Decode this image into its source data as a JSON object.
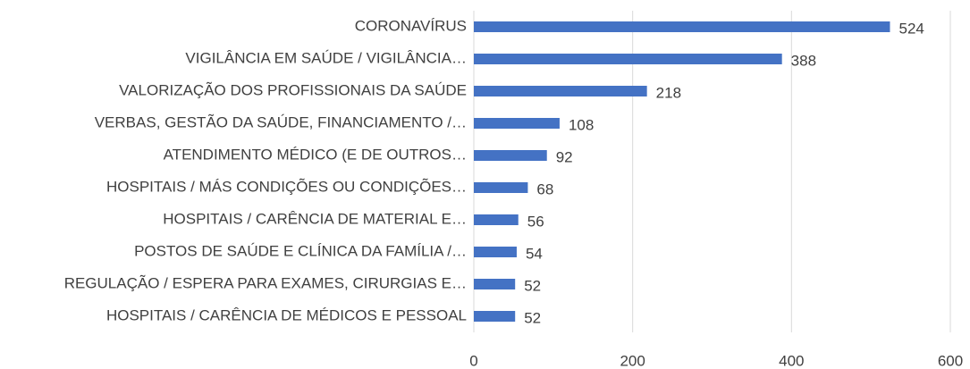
{
  "chart_data": {
    "type": "bar",
    "orientation": "horizontal",
    "categories": [
      "CORONAVÍRUS",
      "VIGILÂNCIA EM SAÚDE / VIGILÂNCIA…",
      "VALORIZAÇÃO DOS PROFISSIONAIS DA SAÚDE",
      "VERBAS, GESTÃO DA SAÚDE, FINANCIAMENTO /…",
      "ATENDIMENTO MÉDICO (E DE OUTROS…",
      "HOSPITAIS / MÁS CONDIÇÕES OU CONDIÇÕES…",
      "HOSPITAIS / CARÊNCIA DE MATERIAL E…",
      "POSTOS DE SAÚDE E CLÍNICA DA FAMÍLIA /…",
      "REGULAÇÃO / ESPERA PARA EXAMES, CIRURGIAS E…",
      "HOSPITAIS / CARÊNCIA DE MÉDICOS E PESSOAL"
    ],
    "values": [
      524,
      388,
      218,
      108,
      92,
      68,
      56,
      54,
      52,
      52
    ],
    "color": "#4472c4",
    "xlim": [
      0,
      600
    ],
    "xticks": [
      0,
      200,
      400,
      600
    ],
    "grid": true
  }
}
